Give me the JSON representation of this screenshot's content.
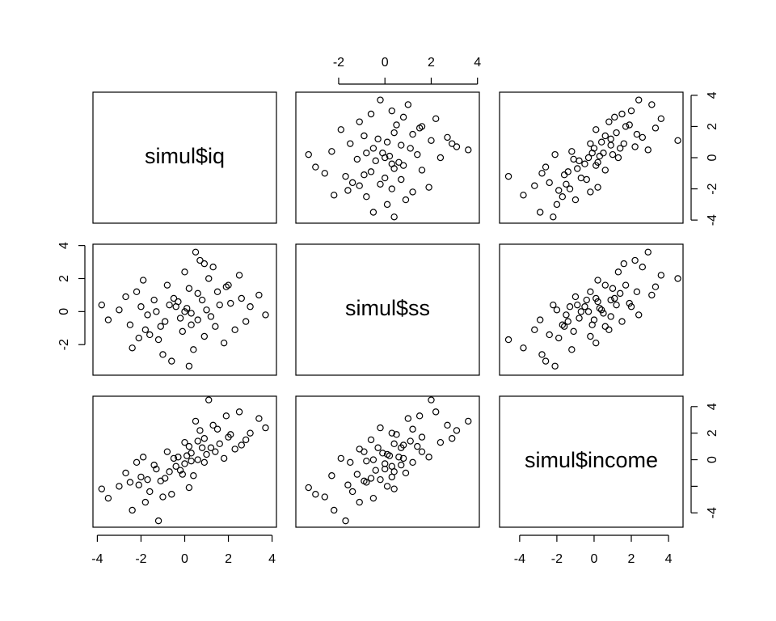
{
  "chart_data": {
    "type": "scatter-matrix",
    "variables": [
      {
        "name": "simul$iq",
        "lim": [
          -4.2,
          4.2
        ],
        "values": [
          0.1,
          -0.5,
          1.2,
          -1.1,
          0.6,
          -0.2,
          2.1,
          -2.0,
          0.9,
          -0.8,
          1.5,
          -1.6,
          0.3,
          -0.3,
          2.8,
          -2.7,
          0.0,
          0.4,
          1.8,
          -1.9,
          3.4,
          -3.5,
          0.7,
          -0.6,
          2.5,
          -2.4,
          1.0,
          -1.3,
          0.2,
          -0.1,
          1.4,
          -1.4,
          3.0,
          -3.0,
          0.5,
          0.2,
          3.7,
          -3.8,
          1.1,
          -1.2,
          0.8,
          -0.9,
          1.6,
          -1.7,
          0.0,
          0.3,
          -0.4,
          2.3,
          -2.2,
          1.3,
          -1.0,
          2.0,
          -2.1,
          0.6,
          -0.7,
          1.9,
          -1.8,
          2.6,
          -2.5,
          0.9
        ]
      },
      {
        "name": "simul$ss",
        "lim": [
          -3.85,
          4.08
        ],
        "values": [
          0.2,
          0.8,
          -0.3,
          -0.9,
          1.1,
          -0.4,
          0.5,
          0.3,
          -1.5,
          1.6,
          1.2,
          -1.4,
          -0.8,
          0.6,
          -0.6,
          0.9,
          2.4,
          -2.3,
          -1.9,
          1.9,
          1.0,
          -0.5,
          3.1,
          -3.0,
          2.2,
          -2.2,
          0.1,
          0.0,
          1.4,
          -1.2,
          -0.9,
          0.7,
          0.3,
          0.1,
          3.6,
          -3.3,
          -0.2,
          0.4,
          2.0,
          -1.7,
          0.7,
          -0.6,
          0.4,
          -0.2,
          0.0,
          -0.1,
          0.3,
          -1.1,
          1.2,
          2.7,
          -2.6,
          1.6,
          -1.6,
          -0.5,
          0.4,
          1.5,
          -1.1,
          0.8,
          -0.8,
          2.9
        ]
      },
      {
        "name": "simul$income",
        "lim": [
          -5.08,
          4.78
        ],
        "values": [
          0.3,
          0.1,
          0.9,
          -1.6,
          1.4,
          -0.8,
          1.9,
          -1.3,
          -0.2,
          0.6,
          2.3,
          -2.4,
          -0.1,
          0.2,
          1.5,
          -1.0,
          1.3,
          -1.2,
          0.1,
          0.2,
          3.1,
          -2.9,
          2.2,
          -2.6,
          3.6,
          -3.8,
          0.4,
          -0.7,
          1.0,
          -1.1,
          0.6,
          -0.4,
          2.0,
          -2.0,
          2.9,
          -2.1,
          2.4,
          -2.2,
          4.5,
          -4.6,
          0.9,
          -1.4,
          1.2,
          -1.5,
          -0.3,
          0.5,
          -0.5,
          0.8,
          -0.2,
          2.6,
          -2.8,
          1.7,
          -1.9,
          0.0,
          -0.9,
          3.3,
          -3.2,
          1.1,
          -1.7,
          1.6
        ]
      }
    ],
    "axes": [
      {
        "variable": 1,
        "side": "top",
        "ticks": [
          -2,
          0,
          2,
          4
        ]
      },
      {
        "variable": 0,
        "side": "right",
        "ticks": [
          -4,
          -2,
          0,
          2,
          4
        ]
      },
      {
        "variable": 1,
        "side": "left",
        "ticks": [
          -2,
          0,
          2,
          4
        ]
      },
      {
        "variable": 2,
        "side": "right",
        "ticks": [
          -4,
          {
            "value": -2,
            "label": null
          },
          0,
          2,
          4
        ]
      },
      {
        "variable": 0,
        "side": "bottom",
        "ticks": [
          -4,
          -2,
          0,
          2,
          4
        ]
      },
      {
        "variable": 2,
        "side": "bottom",
        "ticks": [
          -4,
          -2,
          0,
          2,
          4
        ]
      }
    ],
    "color": "#000000"
  }
}
